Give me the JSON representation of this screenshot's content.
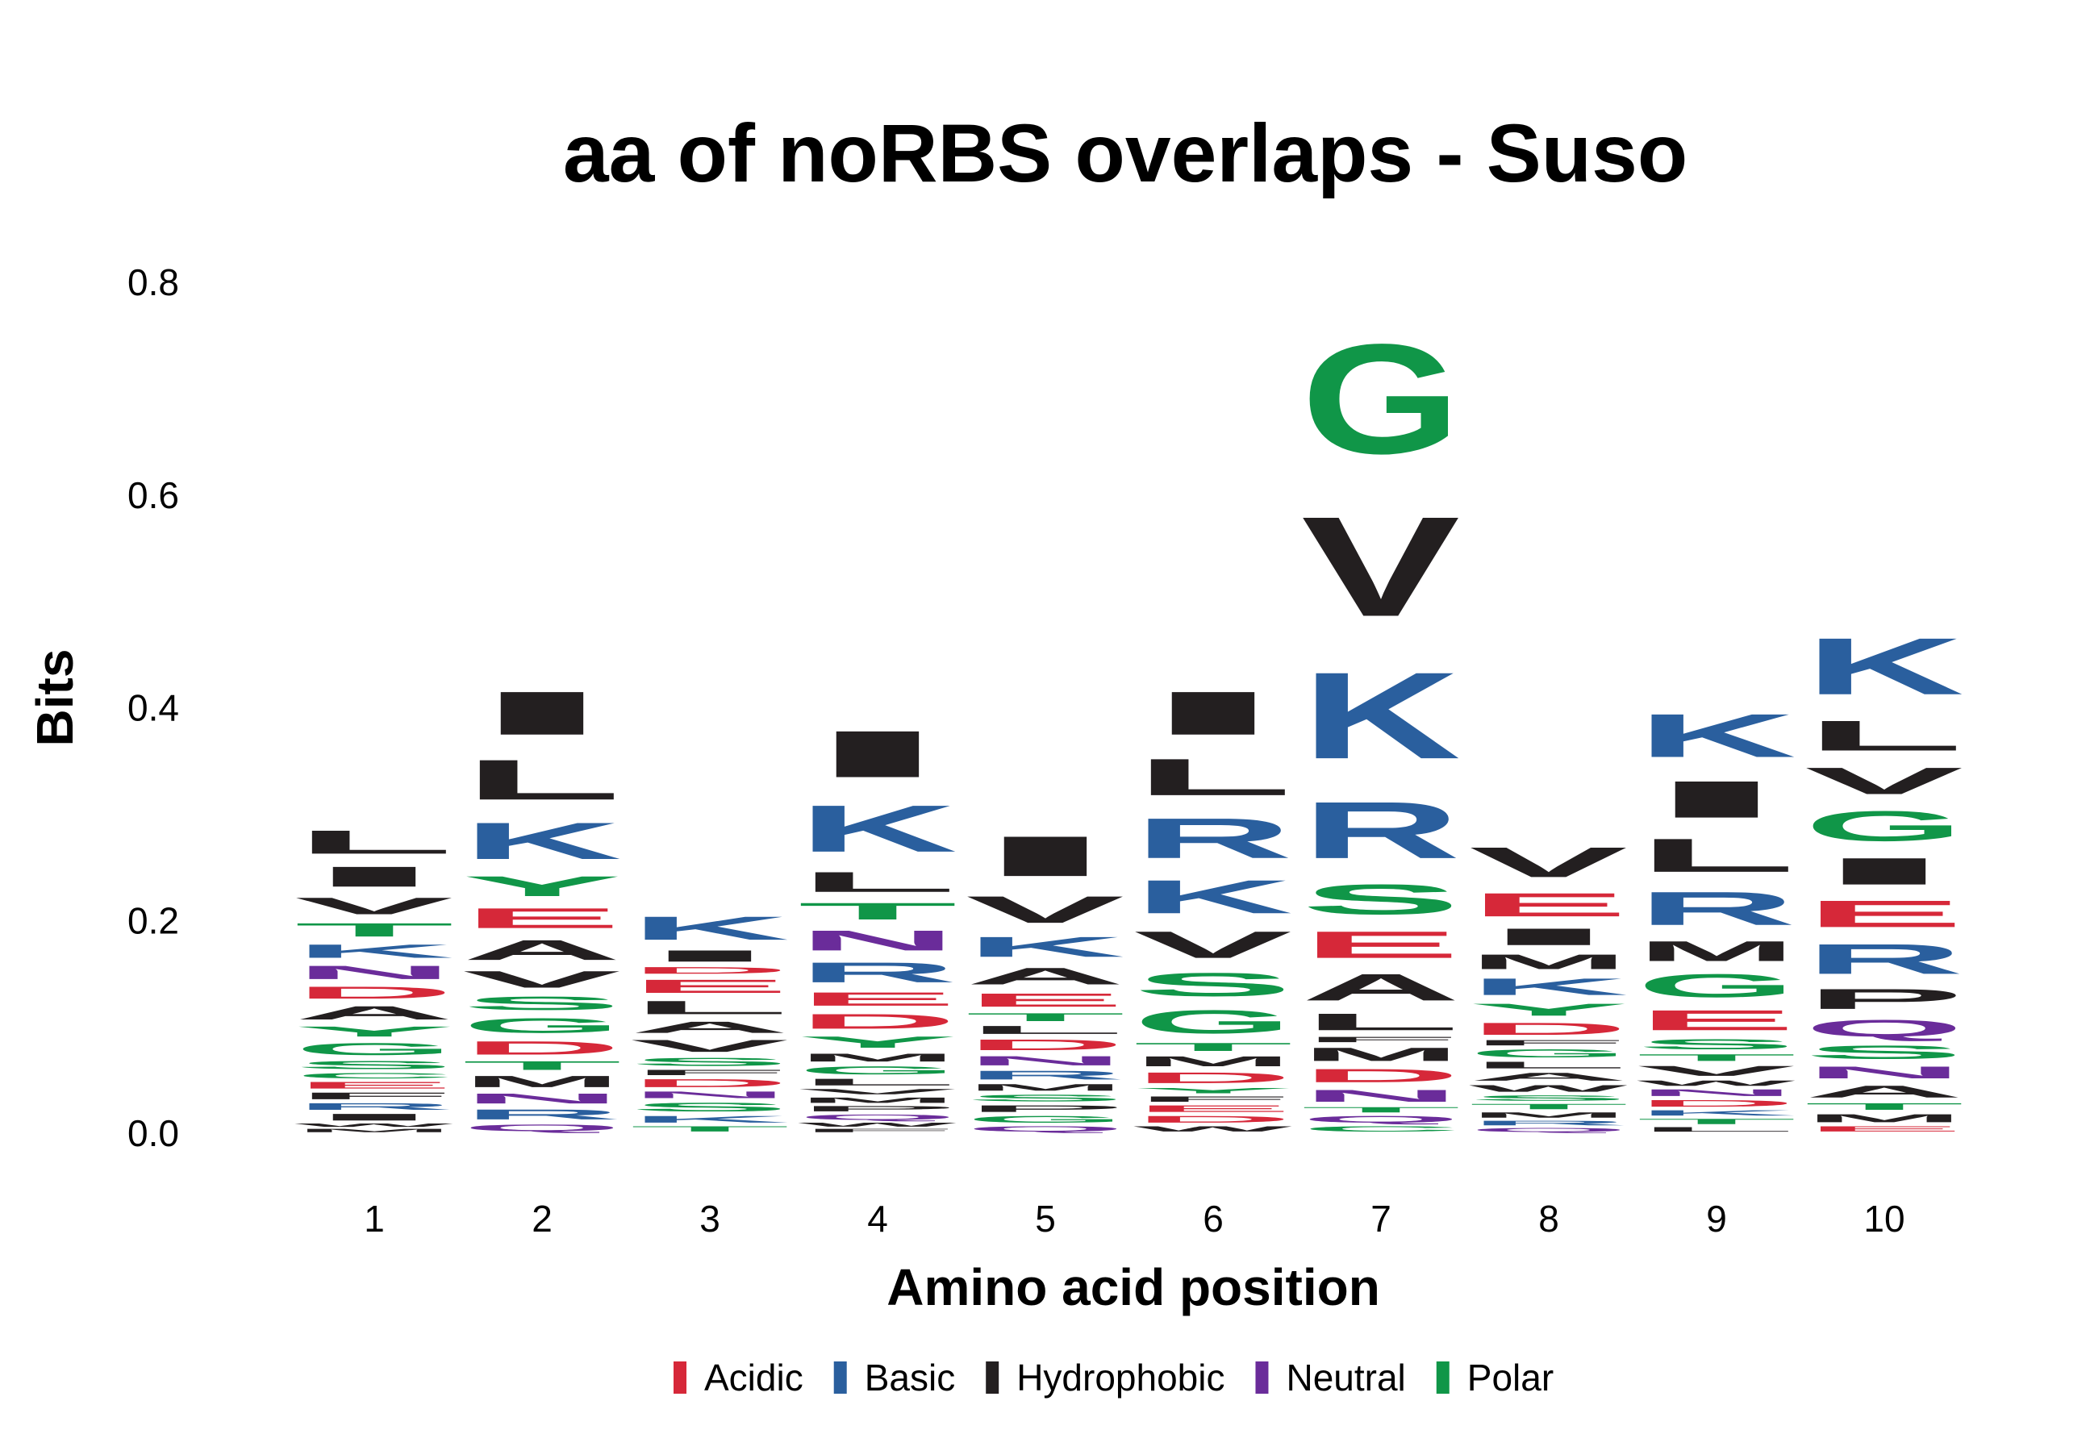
{
  "chart_data": {
    "type": "sequence-logo",
    "title": "aa of noRBS overlaps - Suso",
    "xlabel": "Amino acid position",
    "ylabel": "Bits",
    "ylim": [
      0,
      0.8
    ],
    "y_ticks": [
      "0.0",
      "0.2",
      "0.4",
      "0.6",
      "0.8"
    ],
    "x_ticks": [
      "1",
      "2",
      "3",
      "4",
      "5",
      "6",
      "7",
      "8",
      "9",
      "10"
    ],
    "grid": false,
    "legend_position": "bottom",
    "legend": [
      {
        "label": "Acidic",
        "color": "#d62839"
      },
      {
        "label": "Basic",
        "color": "#2a5f9e"
      },
      {
        "label": "Hydrophobic",
        "color": "#231f20"
      },
      {
        "label": "Neutral",
        "color": "#6a2c9a"
      },
      {
        "label": "Polar",
        "color": "#109648"
      }
    ],
    "colors": {
      "Acidic": "#d62839",
      "Basic": "#2a5f9e",
      "Hydrophobic": "#231f20",
      "Neutral": "#6a2c9a",
      "Polar": "#109648"
    },
    "residue_class": {
      "D": "Acidic",
      "E": "Acidic",
      "K": "Basic",
      "R": "Basic",
      "H": "Basic",
      "A": "Hydrophobic",
      "V": "Hydrophobic",
      "L": "Hydrophobic",
      "I": "Hydrophobic",
      "P": "Hydrophobic",
      "F": "Hydrophobic",
      "W": "Hydrophobic",
      "M": "Hydrophobic",
      "N": "Neutral",
      "Q": "Neutral",
      "G": "Polar",
      "S": "Polar",
      "T": "Polar",
      "Y": "Polar",
      "C": "Polar"
    },
    "positions": [
      {
        "position": 1,
        "letters": [
          [
            "M",
            0.005
          ],
          [
            "W",
            0.005
          ],
          [
            "I",
            0.01
          ],
          [
            "R",
            0.01
          ],
          [
            "F",
            0.01
          ],
          [
            "E",
            0.01
          ],
          [
            "C",
            0.008
          ],
          [
            "S",
            0.012
          ],
          [
            "G",
            0.018
          ],
          [
            "Y",
            0.015
          ],
          [
            "A",
            0.02
          ],
          [
            "D",
            0.018
          ],
          [
            "N",
            0.02
          ],
          [
            "K",
            0.02
          ],
          [
            "T",
            0.02
          ],
          [
            "V",
            0.025
          ],
          [
            "I",
            0.03
          ],
          [
            "L",
            0.035
          ]
        ]
      },
      {
        "position": 2,
        "letters": [
          [
            "Q",
            0.01
          ],
          [
            "R",
            0.015
          ],
          [
            "N",
            0.015
          ],
          [
            "M",
            0.017
          ],
          [
            "T",
            0.013
          ],
          [
            "D",
            0.02
          ],
          [
            "G",
            0.022
          ],
          [
            "S",
            0.02
          ],
          [
            "V",
            0.025
          ],
          [
            "A",
            0.03
          ],
          [
            "E",
            0.03
          ],
          [
            "Y",
            0.03
          ],
          [
            "K",
            0.055
          ],
          [
            "L",
            0.06
          ],
          [
            "I",
            0.065
          ]
        ]
      },
      {
        "position": 3,
        "letters": [
          [
            "T",
            0.008
          ],
          [
            "K",
            0.01
          ],
          [
            "S",
            0.013
          ],
          [
            "N",
            0.01
          ],
          [
            "D",
            0.012
          ],
          [
            "F",
            0.008
          ],
          [
            "S",
            0.012
          ],
          [
            "V",
            0.018
          ],
          [
            "A",
            0.017
          ],
          [
            "L",
            0.02
          ],
          [
            "E",
            0.02
          ],
          [
            "D",
            0.01
          ],
          [
            "I",
            0.017
          ],
          [
            "K",
            0.035
          ]
        ]
      },
      {
        "position": 4,
        "letters": [
          [
            "F",
            0.005
          ],
          [
            "W",
            0.006
          ],
          [
            "Q",
            0.008
          ],
          [
            "P",
            0.008
          ],
          [
            "M",
            0.008
          ],
          [
            "V",
            0.008
          ],
          [
            "L",
            0.01
          ],
          [
            "G",
            0.012
          ],
          [
            "M",
            0.012
          ],
          [
            "Y",
            0.017
          ],
          [
            "D",
            0.022
          ],
          [
            "E",
            0.02
          ],
          [
            "R",
            0.03
          ],
          [
            "N",
            0.03
          ],
          [
            "T",
            0.025
          ],
          [
            "L",
            0.03
          ],
          [
            "K",
            0.07
          ],
          [
            "I",
            0.07
          ]
        ]
      },
      {
        "position": 5,
        "letters": [
          [
            "Q",
            0.008
          ],
          [
            "G",
            0.01
          ],
          [
            "P",
            0.01
          ],
          [
            "S",
            0.01
          ],
          [
            "M",
            0.01
          ],
          [
            "R",
            0.013
          ],
          [
            "N",
            0.014
          ],
          [
            "D",
            0.016
          ],
          [
            "L",
            0.012
          ],
          [
            "T",
            0.012
          ],
          [
            "E",
            0.02
          ],
          [
            "A",
            0.025
          ],
          [
            "K",
            0.03
          ],
          [
            "V",
            0.04
          ],
          [
            "I",
            0.06
          ]
        ]
      },
      {
        "position": 6,
        "letters": [
          [
            "W",
            0.008
          ],
          [
            "D",
            0.01
          ],
          [
            "E",
            0.01
          ],
          [
            "F",
            0.008
          ],
          [
            "Y",
            0.008
          ],
          [
            "D",
            0.016
          ],
          [
            "M",
            0.015
          ],
          [
            "T",
            0.012
          ],
          [
            "G",
            0.035
          ],
          [
            "S",
            0.035
          ],
          [
            "V",
            0.04
          ],
          [
            "K",
            0.05
          ],
          [
            "R",
            0.06
          ],
          [
            "L",
            0.055
          ],
          [
            "I",
            0.065
          ]
        ]
      },
      {
        "position": 7,
        "letters": [
          [
            "C",
            0.008
          ],
          [
            "Q",
            0.01
          ],
          [
            "T",
            0.008
          ],
          [
            "N",
            0.018
          ],
          [
            "D",
            0.02
          ],
          [
            "M",
            0.02
          ],
          [
            "F",
            0.008
          ],
          [
            "L",
            0.025
          ],
          [
            "A",
            0.04
          ],
          [
            "E",
            0.04
          ],
          [
            "S",
            0.045
          ],
          [
            "R",
            0.085
          ],
          [
            "K",
            0.13
          ],
          [
            "V",
            0.15
          ],
          [
            "G",
            0.165
          ]
        ]
      },
      {
        "position": 8,
        "letters": [
          [
            "Q",
            0.006
          ],
          [
            "R",
            0.007
          ],
          [
            "M",
            0.008
          ],
          [
            "T",
            0.008
          ],
          [
            "S",
            0.008
          ],
          [
            "W",
            0.01
          ],
          [
            "A",
            0.012
          ],
          [
            "L",
            0.01
          ],
          [
            "G",
            0.012
          ],
          [
            "F",
            0.008
          ],
          [
            "D",
            0.018
          ],
          [
            "Y",
            0.018
          ],
          [
            "K",
            0.025
          ],
          [
            "M",
            0.022
          ],
          [
            "I",
            0.025
          ],
          [
            "E",
            0.035
          ],
          [
            "V",
            0.045
          ]
        ]
      },
      {
        "position": 9,
        "letters": [
          [
            "L",
            0.007
          ],
          [
            "T",
            0.008
          ],
          [
            "K",
            0.008
          ],
          [
            "D",
            0.01
          ],
          [
            "N",
            0.01
          ],
          [
            "W",
            0.008
          ],
          [
            "V",
            0.015
          ],
          [
            "T",
            0.01
          ],
          [
            "S",
            0.015
          ],
          [
            "E",
            0.03
          ],
          [
            "G",
            0.035
          ],
          [
            "M",
            0.03
          ],
          [
            "R",
            0.05
          ],
          [
            "L",
            0.05
          ],
          [
            "I",
            0.055
          ],
          [
            "K",
            0.065
          ]
        ]
      },
      {
        "position": 10,
        "letters": [
          [
            "E",
            0.008
          ],
          [
            "M",
            0.012
          ],
          [
            "T",
            0.01
          ],
          [
            "A",
            0.018
          ],
          [
            "N",
            0.018
          ],
          [
            "S",
            0.02
          ],
          [
            "Q",
            0.025
          ],
          [
            "P",
            0.03
          ],
          [
            "R",
            0.045
          ],
          [
            "E",
            0.04
          ],
          [
            "I",
            0.04
          ],
          [
            "G",
            0.045
          ],
          [
            "V",
            0.04
          ],
          [
            "L",
            0.045
          ],
          [
            "K",
            0.085
          ]
        ]
      }
    ]
  }
}
